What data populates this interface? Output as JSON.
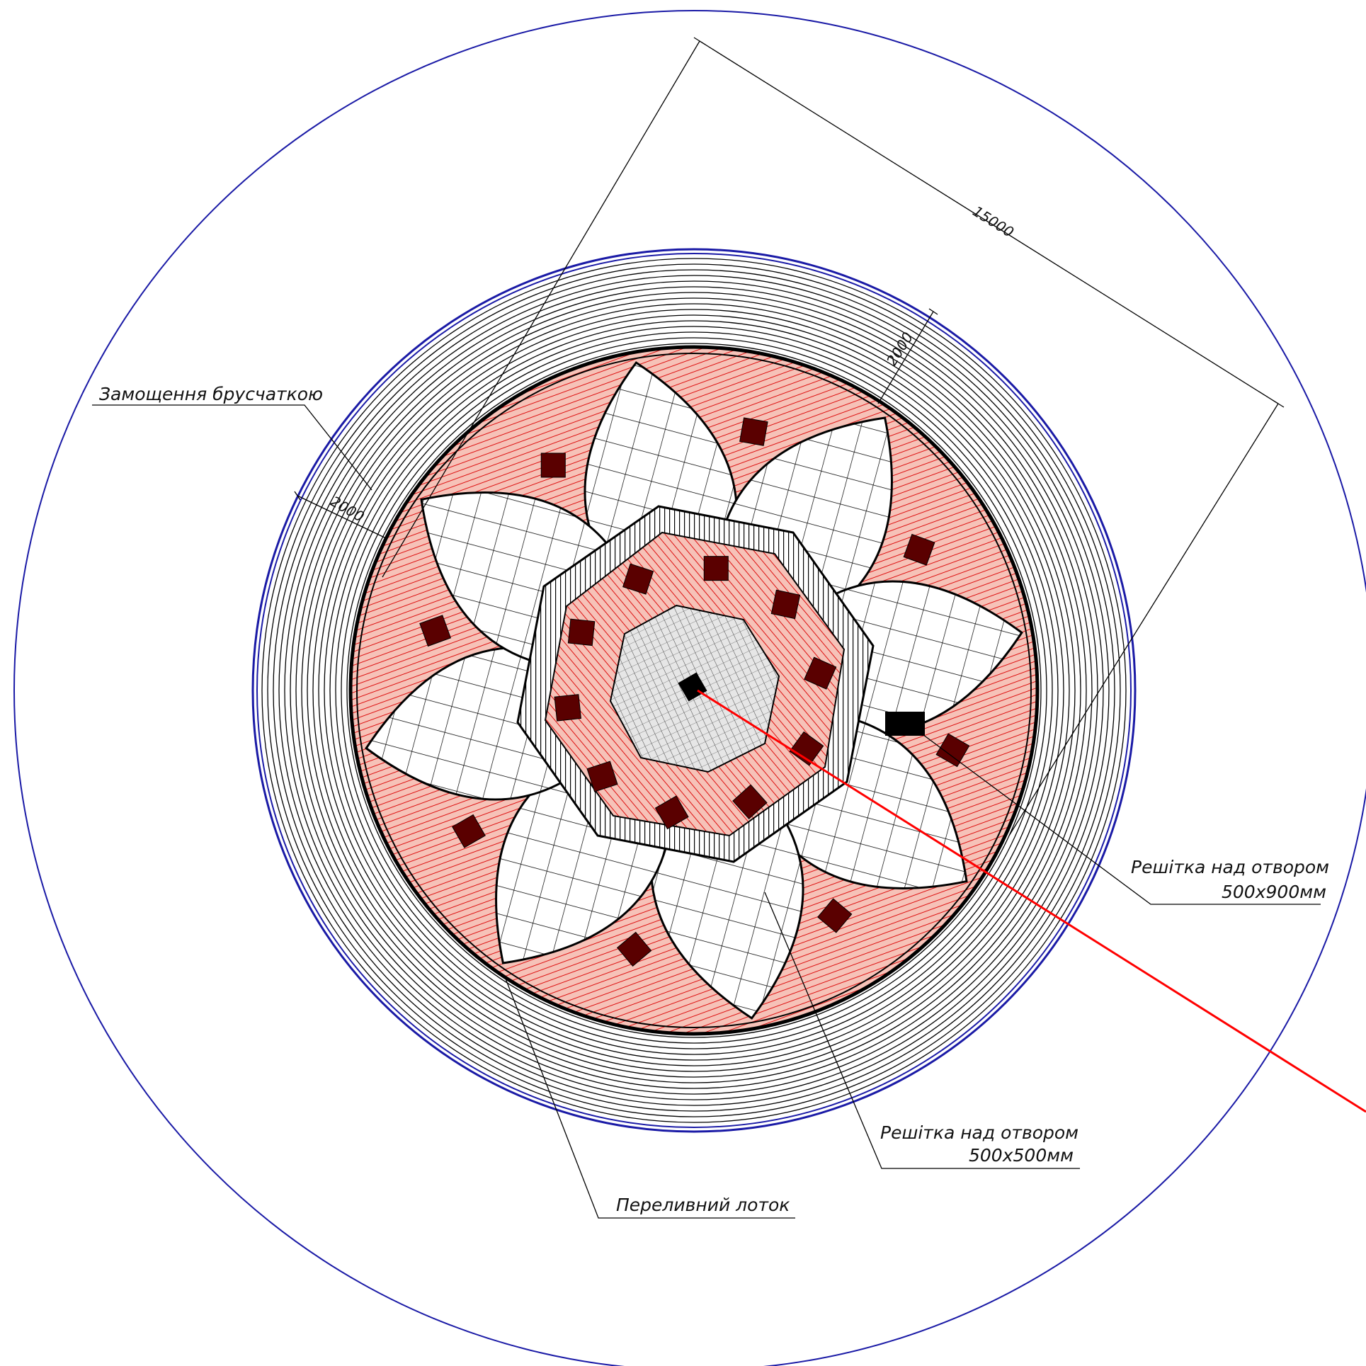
{
  "drawing": {
    "labels": {
      "paving": "Замощення брусчаткою",
      "overflow_tray": "Переливний лоток",
      "grate_small_line1": "Решітка над отвором",
      "grate_small_line2": "500x500мм",
      "grate_large_line1": "Решітка над отвором",
      "grate_large_line2": "500x900мм"
    },
    "dimensions": {
      "overall": "15000",
      "ring_left": "2000",
      "ring_right": "2000"
    },
    "colors": {
      "outer_circle": "#1a1aa6",
      "fill_red": "#f2b3a8",
      "hatch_red": "#dd1111",
      "grate_dark": "#5a0000",
      "pointer_red": "#ff0000",
      "line": "#000000"
    }
  }
}
